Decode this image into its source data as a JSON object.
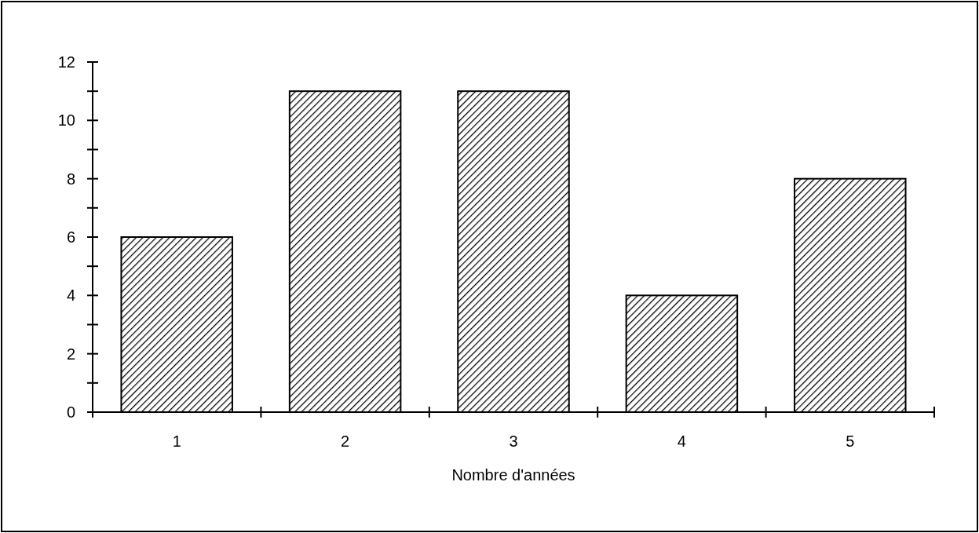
{
  "chart_data": {
    "type": "bar",
    "xlabel": "Nombre d'années",
    "categories": [
      "1",
      "2",
      "3",
      "4",
      "5"
    ],
    "values": [
      6,
      11,
      11,
      4,
      8
    ],
    "color": "#000000",
    "ylim": [
      0,
      12
    ],
    "yticks": [
      0,
      {
        "value": 1,
        "label": null
      },
      2,
      {
        "value": 3,
        "label": null
      },
      4,
      {
        "value": 5,
        "label": null
      },
      6,
      {
        "value": 7,
        "label": null
      },
      8,
      {
        "value": 9,
        "label": null
      },
      10,
      {
        "value": 11,
        "label": null
      },
      12
    ],
    "grid": false
  }
}
